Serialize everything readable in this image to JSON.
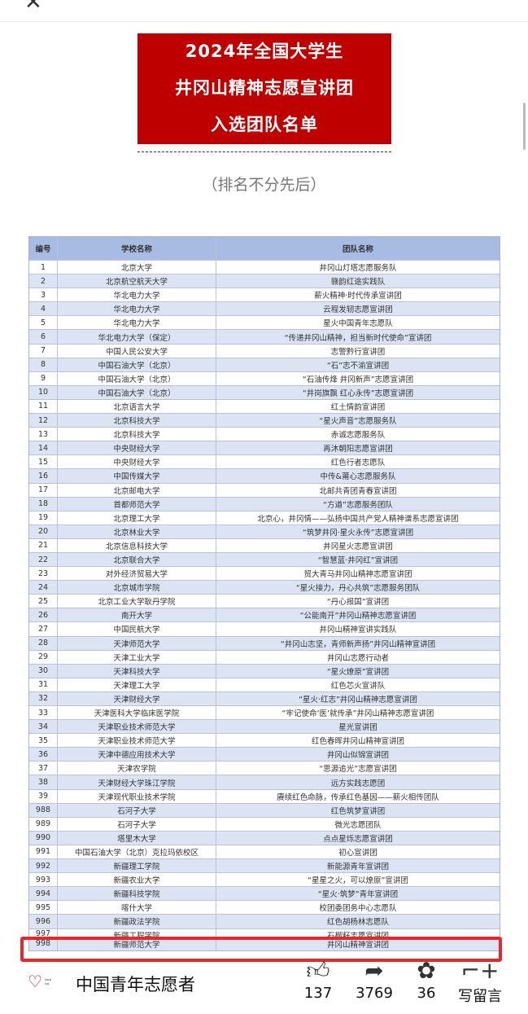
{
  "nav": {
    "close_icon": "close-icon"
  },
  "banner": {
    "lines": [
      "2024年全国大学生",
      "井冈山精神志愿宣讲团",
      "入选团队名单"
    ],
    "color": "#bf0000"
  },
  "subtitle": "（排名不分先后）",
  "table": {
    "headers": [
      "编号",
      "学校名称",
      "团队名称"
    ],
    "rows": [
      [
        "1",
        "北京大学",
        "井冈山灯塔志愿服务队"
      ],
      [
        "2",
        "北京航空航天大学",
        "赣韵红途实践队"
      ],
      [
        "3",
        "华北电力大学",
        "薪火精神·时代传承宣讲团"
      ],
      [
        "4",
        "华北电力大学",
        "云程发轫志愿宣讲团"
      ],
      [
        "5",
        "华北电力大学",
        "星火中国青年志愿队"
      ],
      [
        "6",
        "华北电力大学（保定）",
        "“传递井冈山精神，担当新时代使命”宣讲团"
      ],
      [
        "7",
        "中国人民公安大学",
        "志警黔行宣讲团"
      ],
      [
        "8",
        "中国石油大学（北京）",
        "“石”志不渝宣讲团"
      ],
      [
        "9",
        "中国石油大学（北京）",
        "“石油传烽 井冈新声”志愿宣讲团"
      ],
      [
        "10",
        "中国石油大学（北京）",
        "“井岗旗飘 红心永传”志愿宣讲团"
      ],
      [
        "11",
        "北京语言大学",
        "红土情韵宣讲团"
      ],
      [
        "12",
        "北京科技大学",
        "“星火声音”志愿服务队"
      ],
      [
        "13",
        "北京科技大学",
        "赤诚志愿服务队"
      ],
      [
        "14",
        "中央财经大学",
        "再沐朝阳志愿宣讲团"
      ],
      [
        "15",
        "中央财经大学",
        "红色行者志愿队"
      ],
      [
        "16",
        "中国传媒大学",
        "中传&莆心志愿服务队"
      ],
      [
        "17",
        "北京邮电大学",
        "北邮共青团青春宣讲团"
      ],
      [
        "18",
        "首都师范大学",
        "“方遒”志愿服务团队"
      ],
      [
        "19",
        "北京理工大学",
        "北京心，井冈情——弘扬中国共产党人精神谱系志愿宣讲团"
      ],
      [
        "20",
        "北京林业大学",
        "“筑梦井冈·星火永传”志愿宣讲团"
      ],
      [
        "21",
        "北京信息科技大学",
        "井冈星火志愿宣讲团"
      ],
      [
        "22",
        "北京联合大学",
        "“智慧蓝·井冈红”宣讲团"
      ],
      [
        "23",
        "对外经济贸易大学",
        "贸大青马井冈山精神志愿宣讲团"
      ],
      [
        "24",
        "北京城市学院",
        "“星火接力，丹心共筑”志愿服务团队"
      ],
      [
        "25",
        "北京工业大学耿丹学院",
        "“丹心报国”宣讲团"
      ],
      [
        "26",
        "南开大学",
        "“公能南开”井冈山精神志愿宣讲团"
      ],
      [
        "27",
        "中国民航大学",
        "井冈山精神宣讲实践队"
      ],
      [
        "28",
        "天津师范大学",
        "“井冈山志坚，青师新声扬”井冈山精神宣讲团"
      ],
      [
        "29",
        "天津工业大学",
        "井冈山志愿行动者"
      ],
      [
        "30",
        "天津科技大学",
        "“星火燎原”宣讲团"
      ],
      [
        "31",
        "天津理工大学",
        "红色芯火宣讲队"
      ],
      [
        "32",
        "天津财经大学",
        "“星火·红志”井冈山精神志愿宣讲团"
      ],
      [
        "33",
        "天津医科大学临床医学院",
        "“牢记使命‘医’就传承”井冈山精神志愿宣讲团"
      ],
      [
        "34",
        "天津职业技术师范大学",
        "星光宣讲团"
      ],
      [
        "35",
        "天津职业技术师范大学",
        "红色春晖井冈山精神宣讲团"
      ],
      [
        "36",
        "天津中德应用技术大学",
        "井冈山似锦宣讲团"
      ],
      [
        "37",
        "天津农学院",
        "“思源追光”志愿宣讲团"
      ],
      [
        "38",
        "天津财经大学珠江学院",
        "远方实践志愿团"
      ],
      [
        "39",
        "天津现代职业技术学院",
        "赓续红色命脉，传承红色基因——薪火相传团队"
      ],
      [
        "988",
        "石河子大学",
        "红色筑梦宣讲团"
      ],
      [
        "989",
        "石河子大学",
        "微光志愿团队"
      ],
      [
        "990",
        "塔里木大学",
        "点点星烁志愿宣讲团"
      ],
      [
        "991",
        "中国石油大学（北京）克拉玛依校区",
        "初心宣讲团"
      ],
      [
        "992",
        "新疆理工学院",
        "新能源青年宣讲团"
      ],
      [
        "993",
        "新疆农业大学",
        "“星星之火，可以燎原”宣讲团"
      ],
      [
        "994",
        "新疆科技学院",
        "“星火·筑梦”青年宣讲团"
      ],
      [
        "995",
        "喀什大学",
        "校团委团务中心志愿队"
      ],
      [
        "996",
        "新疆政法学院",
        "红色胡杨林志愿队"
      ],
      [
        "997",
        "新疆工程学院",
        "石榴籽志愿宣讲团"
      ],
      [
        "998",
        "新疆师范大学",
        "井冈山精神宣讲团"
      ]
    ],
    "header_color": "#a8bce3",
    "alt_row_color": "#dce4f4",
    "highlight_color": "#e8262b"
  },
  "footer": {
    "account": "中国青年志愿者",
    "like_count": "137",
    "share_count": "3769",
    "wow_count": "36",
    "comment_label": "写留言"
  }
}
